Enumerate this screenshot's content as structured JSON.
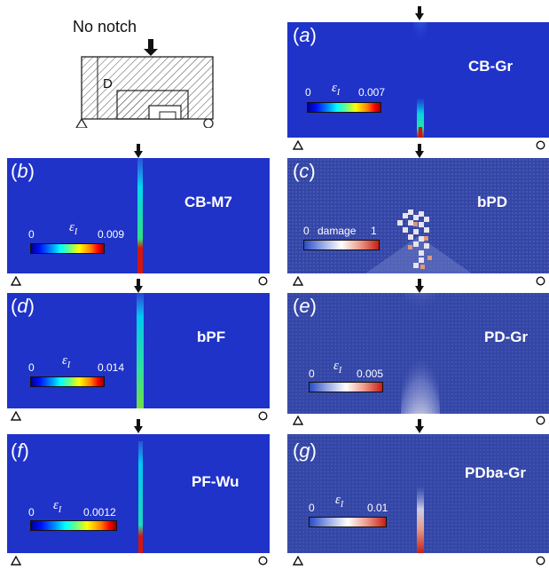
{
  "schematic": {
    "title": "No notch",
    "depth_label": "D"
  },
  "panels": [
    {
      "id": "a",
      "letter": "a",
      "method": "CB-Gr",
      "cb_min": "0",
      "cb_max": "0.007",
      "cb_mid": "",
      "symbol": "εI",
      "scheme": "jet"
    },
    {
      "id": "b",
      "letter": "b",
      "method": "CB-M7",
      "cb_min": "0",
      "cb_max": "0.009",
      "cb_mid": "",
      "symbol": "εI",
      "scheme": "jet"
    },
    {
      "id": "c",
      "letter": "c",
      "method": "bPD",
      "cb_min": "0",
      "cb_max": "1",
      "cb_mid": "damage",
      "symbol": "",
      "scheme": "seis"
    },
    {
      "id": "d",
      "letter": "d",
      "method": "bPF",
      "cb_min": "0",
      "cb_max": "0.014",
      "cb_mid": "",
      "symbol": "εI",
      "scheme": "jet"
    },
    {
      "id": "e",
      "letter": "e",
      "method": "PD-Gr",
      "cb_min": "0",
      "cb_max": "0.005",
      "cb_mid": "",
      "symbol": "εI",
      "scheme": "seis"
    },
    {
      "id": "f",
      "letter": "f",
      "method": "PF-Wu",
      "cb_min": "0",
      "cb_max": "0.0012",
      "cb_mid": "",
      "symbol": "εI",
      "scheme": "jet"
    },
    {
      "id": "g",
      "letter": "g",
      "method": "PDba-Gr",
      "cb_min": "0",
      "cb_max": "0.01",
      "cb_mid": "",
      "symbol": "εI",
      "scheme": "seis"
    }
  ],
  "colors": {
    "field_blue": "#1f33c9",
    "pd_field": "#3446a6",
    "crack_red": "#d4150c"
  }
}
